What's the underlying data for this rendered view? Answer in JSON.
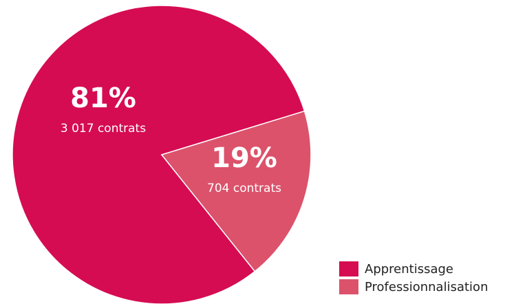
{
  "chart_data": {
    "type": "pie",
    "categories": [
      "Apprentissage",
      "Professionnalisation"
    ],
    "values": [
      81,
      19
    ],
    "value_labels": [
      "81%",
      "19%"
    ],
    "sublabels": [
      "3 017 contrats",
      "704 contrats"
    ],
    "colors": [
      "#d50c52",
      "#dc526b"
    ],
    "legend": "bottom-right"
  }
}
